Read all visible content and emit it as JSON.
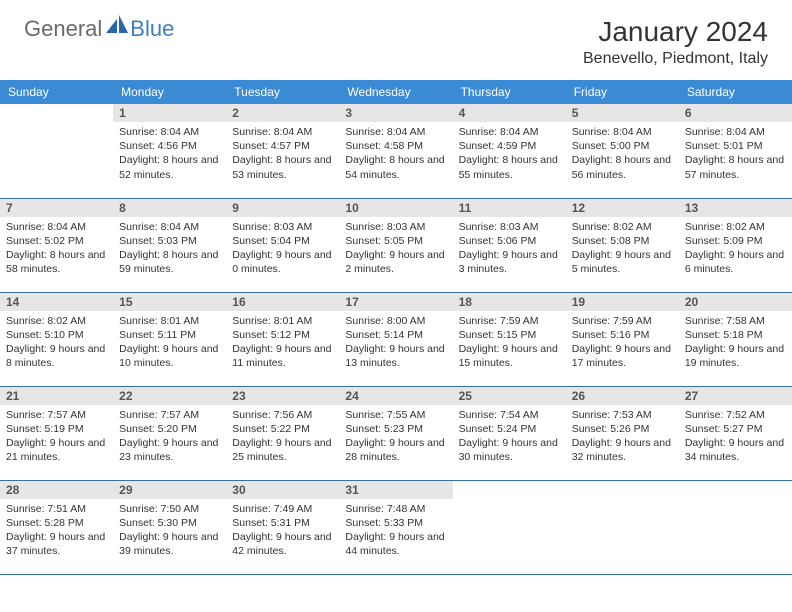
{
  "brand": {
    "part1": "General",
    "part2": "Blue"
  },
  "title": "January 2024",
  "location": "Benevello, Piedmont, Italy",
  "colors": {
    "header_bg": "#3b8bd4",
    "header_text": "#ffffff",
    "daynum_bg": "#e6e6e6",
    "border": "#3b6fa8",
    "logo_gray": "#6b6b6b",
    "logo_blue": "#3b7fc4"
  },
  "fonts": {
    "title_size": 28,
    "location_size": 16,
    "dayhead_size": 12,
    "info_size": 10.5
  },
  "dayNames": [
    "Sunday",
    "Monday",
    "Tuesday",
    "Wednesday",
    "Thursday",
    "Friday",
    "Saturday"
  ],
  "weeks": [
    [
      {
        "n": "",
        "sr": "",
        "ss": "",
        "dl": ""
      },
      {
        "n": "1",
        "sr": "Sunrise: 8:04 AM",
        "ss": "Sunset: 4:56 PM",
        "dl": "Daylight: 8 hours and 52 minutes."
      },
      {
        "n": "2",
        "sr": "Sunrise: 8:04 AM",
        "ss": "Sunset: 4:57 PM",
        "dl": "Daylight: 8 hours and 53 minutes."
      },
      {
        "n": "3",
        "sr": "Sunrise: 8:04 AM",
        "ss": "Sunset: 4:58 PM",
        "dl": "Daylight: 8 hours and 54 minutes."
      },
      {
        "n": "4",
        "sr": "Sunrise: 8:04 AM",
        "ss": "Sunset: 4:59 PM",
        "dl": "Daylight: 8 hours and 55 minutes."
      },
      {
        "n": "5",
        "sr": "Sunrise: 8:04 AM",
        "ss": "Sunset: 5:00 PM",
        "dl": "Daylight: 8 hours and 56 minutes."
      },
      {
        "n": "6",
        "sr": "Sunrise: 8:04 AM",
        "ss": "Sunset: 5:01 PM",
        "dl": "Daylight: 8 hours and 57 minutes."
      }
    ],
    [
      {
        "n": "7",
        "sr": "Sunrise: 8:04 AM",
        "ss": "Sunset: 5:02 PM",
        "dl": "Daylight: 8 hours and 58 minutes."
      },
      {
        "n": "8",
        "sr": "Sunrise: 8:04 AM",
        "ss": "Sunset: 5:03 PM",
        "dl": "Daylight: 8 hours and 59 minutes."
      },
      {
        "n": "9",
        "sr": "Sunrise: 8:03 AM",
        "ss": "Sunset: 5:04 PM",
        "dl": "Daylight: 9 hours and 0 minutes."
      },
      {
        "n": "10",
        "sr": "Sunrise: 8:03 AM",
        "ss": "Sunset: 5:05 PM",
        "dl": "Daylight: 9 hours and 2 minutes."
      },
      {
        "n": "11",
        "sr": "Sunrise: 8:03 AM",
        "ss": "Sunset: 5:06 PM",
        "dl": "Daylight: 9 hours and 3 minutes."
      },
      {
        "n": "12",
        "sr": "Sunrise: 8:02 AM",
        "ss": "Sunset: 5:08 PM",
        "dl": "Daylight: 9 hours and 5 minutes."
      },
      {
        "n": "13",
        "sr": "Sunrise: 8:02 AM",
        "ss": "Sunset: 5:09 PM",
        "dl": "Daylight: 9 hours and 6 minutes."
      }
    ],
    [
      {
        "n": "14",
        "sr": "Sunrise: 8:02 AM",
        "ss": "Sunset: 5:10 PM",
        "dl": "Daylight: 9 hours and 8 minutes."
      },
      {
        "n": "15",
        "sr": "Sunrise: 8:01 AM",
        "ss": "Sunset: 5:11 PM",
        "dl": "Daylight: 9 hours and 10 minutes."
      },
      {
        "n": "16",
        "sr": "Sunrise: 8:01 AM",
        "ss": "Sunset: 5:12 PM",
        "dl": "Daylight: 9 hours and 11 minutes."
      },
      {
        "n": "17",
        "sr": "Sunrise: 8:00 AM",
        "ss": "Sunset: 5:14 PM",
        "dl": "Daylight: 9 hours and 13 minutes."
      },
      {
        "n": "18",
        "sr": "Sunrise: 7:59 AM",
        "ss": "Sunset: 5:15 PM",
        "dl": "Daylight: 9 hours and 15 minutes."
      },
      {
        "n": "19",
        "sr": "Sunrise: 7:59 AM",
        "ss": "Sunset: 5:16 PM",
        "dl": "Daylight: 9 hours and 17 minutes."
      },
      {
        "n": "20",
        "sr": "Sunrise: 7:58 AM",
        "ss": "Sunset: 5:18 PM",
        "dl": "Daylight: 9 hours and 19 minutes."
      }
    ],
    [
      {
        "n": "21",
        "sr": "Sunrise: 7:57 AM",
        "ss": "Sunset: 5:19 PM",
        "dl": "Daylight: 9 hours and 21 minutes."
      },
      {
        "n": "22",
        "sr": "Sunrise: 7:57 AM",
        "ss": "Sunset: 5:20 PM",
        "dl": "Daylight: 9 hours and 23 minutes."
      },
      {
        "n": "23",
        "sr": "Sunrise: 7:56 AM",
        "ss": "Sunset: 5:22 PM",
        "dl": "Daylight: 9 hours and 25 minutes."
      },
      {
        "n": "24",
        "sr": "Sunrise: 7:55 AM",
        "ss": "Sunset: 5:23 PM",
        "dl": "Daylight: 9 hours and 28 minutes."
      },
      {
        "n": "25",
        "sr": "Sunrise: 7:54 AM",
        "ss": "Sunset: 5:24 PM",
        "dl": "Daylight: 9 hours and 30 minutes."
      },
      {
        "n": "26",
        "sr": "Sunrise: 7:53 AM",
        "ss": "Sunset: 5:26 PM",
        "dl": "Daylight: 9 hours and 32 minutes."
      },
      {
        "n": "27",
        "sr": "Sunrise: 7:52 AM",
        "ss": "Sunset: 5:27 PM",
        "dl": "Daylight: 9 hours and 34 minutes."
      }
    ],
    [
      {
        "n": "28",
        "sr": "Sunrise: 7:51 AM",
        "ss": "Sunset: 5:28 PM",
        "dl": "Daylight: 9 hours and 37 minutes."
      },
      {
        "n": "29",
        "sr": "Sunrise: 7:50 AM",
        "ss": "Sunset: 5:30 PM",
        "dl": "Daylight: 9 hours and 39 minutes."
      },
      {
        "n": "30",
        "sr": "Sunrise: 7:49 AM",
        "ss": "Sunset: 5:31 PM",
        "dl": "Daylight: 9 hours and 42 minutes."
      },
      {
        "n": "31",
        "sr": "Sunrise: 7:48 AM",
        "ss": "Sunset: 5:33 PM",
        "dl": "Daylight: 9 hours and 44 minutes."
      },
      {
        "n": "",
        "sr": "",
        "ss": "",
        "dl": ""
      },
      {
        "n": "",
        "sr": "",
        "ss": "",
        "dl": ""
      },
      {
        "n": "",
        "sr": "",
        "ss": "",
        "dl": ""
      }
    ]
  ]
}
